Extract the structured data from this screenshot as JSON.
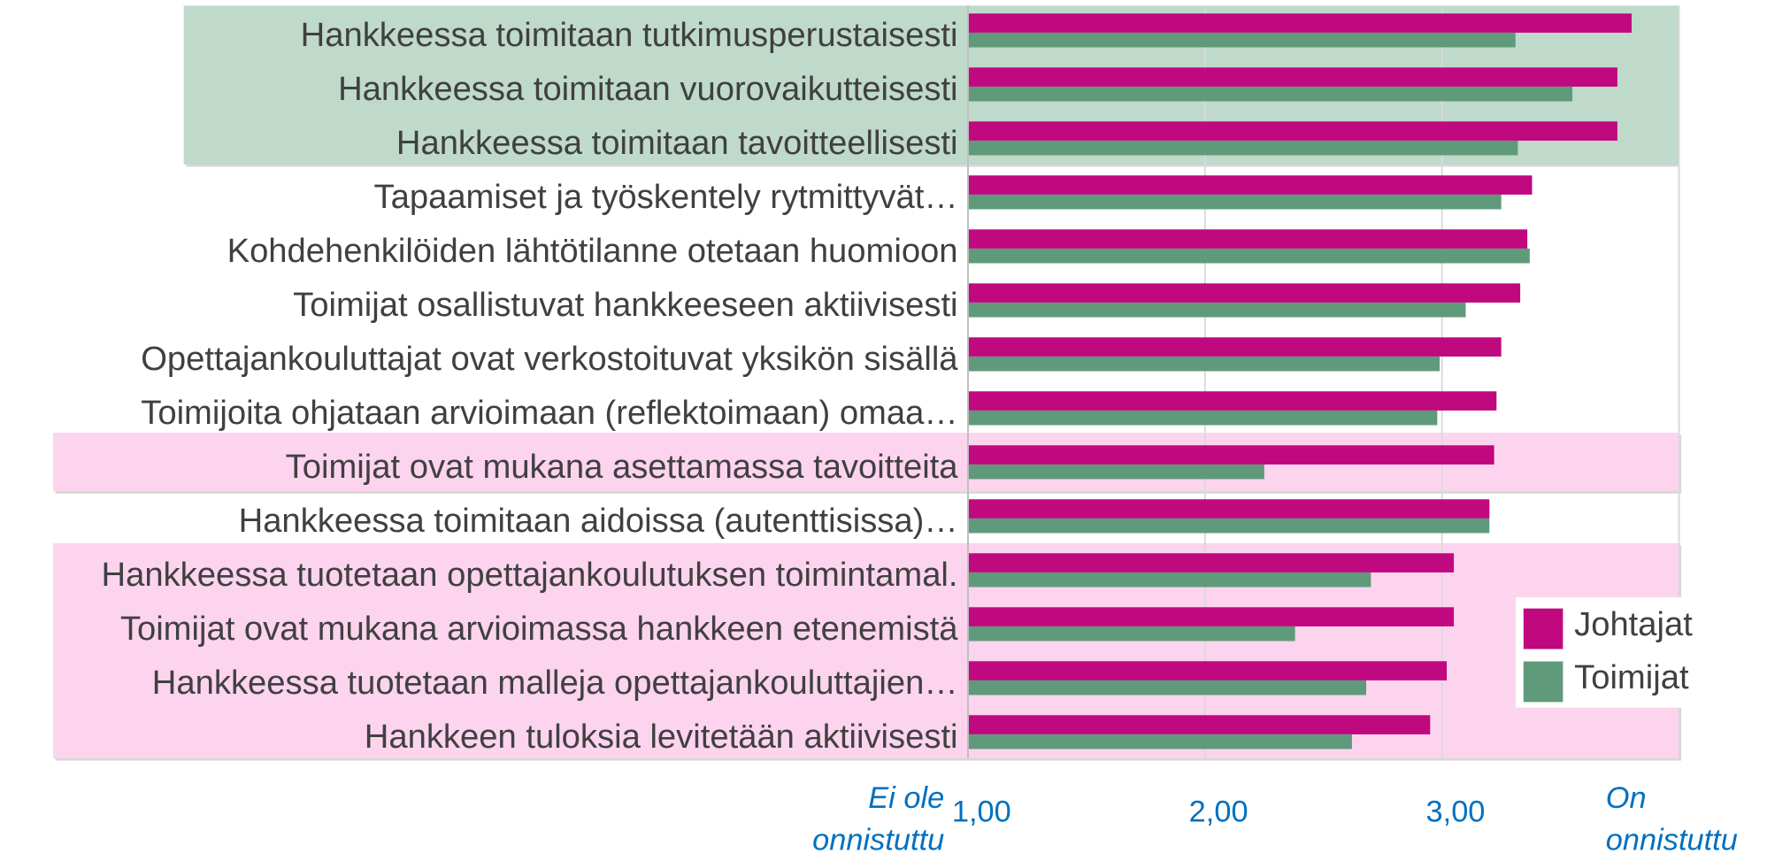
{
  "chart_data": {
    "type": "hbar",
    "categories": [
      "Hankkeessa toimitaan tutkimusperustaisesti",
      "Hankkeessa toimitaan vuorovaikutteisesti",
      "Hankkeessa toimitaan tavoitteellisesti",
      "Tapaamiset ja työskentely rytmittyvät…",
      "Kohdehenkilöiden lähtötilanne otetaan huomioon",
      "Toimijat osallistuvat hankkeeseen aktiivisesti",
      "Opettajankouluttajat ovat verkostoituvat yksikön sisällä",
      "Toimijoita ohjataan arvioimaan (reflektoimaan) omaa…",
      "Toimijat ovat mukana asettamassa tavoitteita",
      "Hankkeessa toimitaan aidoissa (autenttisissa)…",
      "Hankkeessa tuotetaan opettajankoulutuksen toimintamal.",
      "Toimijat ovat mukana arvioimassa hankkeen etenemistä",
      "Hankkeessa tuotetaan malleja opettajankouluttajien…",
      "Hankkeen tuloksia levitetään aktiivisesti"
    ],
    "series": [
      {
        "name": "Johtajat",
        "color": "#c0087f",
        "values": [
          3.8,
          3.74,
          3.74,
          3.38,
          3.36,
          3.33,
          3.25,
          3.23,
          3.22,
          3.2,
          3.05,
          3.05,
          3.02,
          2.95
        ]
      },
      {
        "name": "Toimijat",
        "color": "#5f9a7a",
        "values": [
          3.31,
          3.55,
          3.32,
          3.25,
          3.37,
          3.1,
          2.99,
          2.98,
          2.25,
          3.2,
          2.7,
          2.38,
          2.68,
          2.62
        ]
      }
    ],
    "xlim": [
      1,
      4
    ],
    "xticks": [
      {
        "value": 1,
        "label": "1,00"
      },
      {
        "value": 2,
        "label": "2,00"
      },
      {
        "value": 3,
        "label": "3,00"
      }
    ],
    "grid": true,
    "legend": "right",
    "annotations": {
      "left": [
        "Ei ole",
        "onnistuttu"
      ],
      "right": [
        "On",
        "onnistuttu"
      ]
    }
  }
}
